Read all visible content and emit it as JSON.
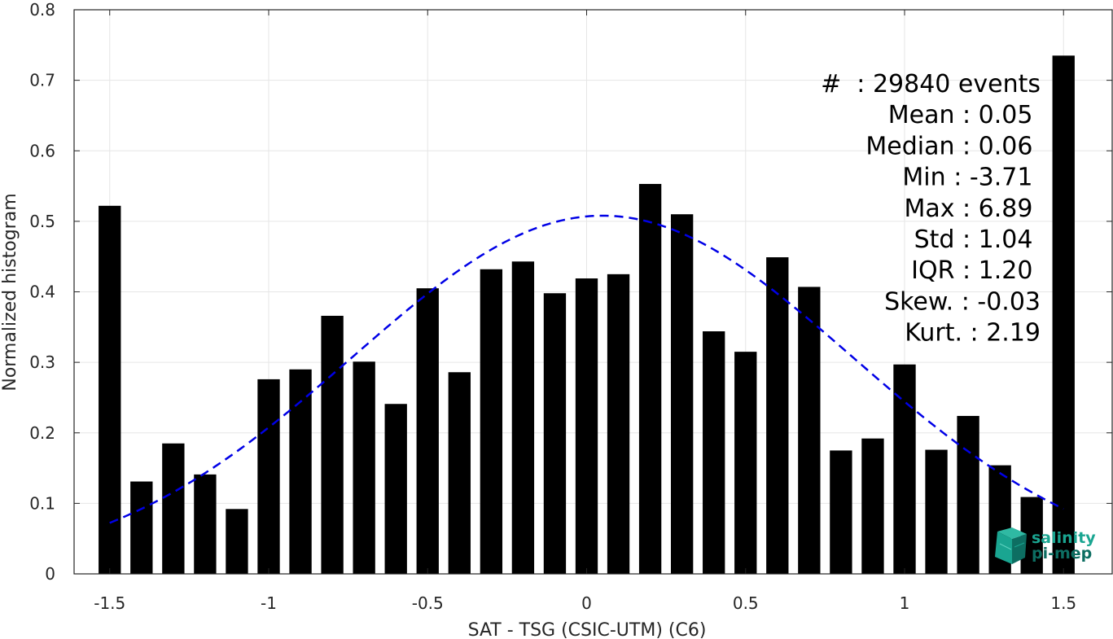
{
  "chart_data": {
    "type": "bar",
    "xlabel": "SAT - TSG (CSIC-UTM) (C6)",
    "ylabel": "Normalized histogram",
    "xlim": [
      -1.6,
      1.6
    ],
    "ylim": [
      0,
      0.8
    ],
    "xticks": [
      -1.5,
      -1,
      -0.5,
      0,
      0.5,
      1,
      1.5
    ],
    "xtick_labels": [
      "-1.5",
      "-1",
      "-0.5",
      "0",
      "0.5",
      "1",
      "1.5"
    ],
    "yticks": [
      0,
      0.1,
      0.2,
      0.3,
      0.4,
      0.5,
      0.6,
      0.7,
      0.8
    ],
    "ytick_labels": [
      "0",
      "0.1",
      "0.2",
      "0.3",
      "0.4",
      "0.5",
      "0.6",
      "0.7",
      "0.8"
    ],
    "grid": true,
    "bar_color": "#000000",
    "bar_width": 0.07,
    "bins": [
      {
        "x": -1.5,
        "y": 0.522
      },
      {
        "x": -1.4,
        "y": 0.131
      },
      {
        "x": -1.3,
        "y": 0.185
      },
      {
        "x": -1.2,
        "y": 0.141
      },
      {
        "x": -1.1,
        "y": 0.092
      },
      {
        "x": -1.0,
        "y": 0.276
      },
      {
        "x": -0.9,
        "y": 0.29
      },
      {
        "x": -0.8,
        "y": 0.366
      },
      {
        "x": -0.7,
        "y": 0.301
      },
      {
        "x": -0.6,
        "y": 0.241
      },
      {
        "x": -0.5,
        "y": 0.405
      },
      {
        "x": -0.4,
        "y": 0.286
      },
      {
        "x": -0.3,
        "y": 0.432
      },
      {
        "x": -0.2,
        "y": 0.443
      },
      {
        "x": -0.1,
        "y": 0.398
      },
      {
        "x": 0.0,
        "y": 0.419
      },
      {
        "x": 0.1,
        "y": 0.425
      },
      {
        "x": 0.2,
        "y": 0.553
      },
      {
        "x": 0.3,
        "y": 0.51
      },
      {
        "x": 0.4,
        "y": 0.344
      },
      {
        "x": 0.5,
        "y": 0.315
      },
      {
        "x": 0.6,
        "y": 0.449
      },
      {
        "x": 0.7,
        "y": 0.407
      },
      {
        "x": 0.8,
        "y": 0.175
      },
      {
        "x": 0.9,
        "y": 0.192
      },
      {
        "x": 1.0,
        "y": 0.297
      },
      {
        "x": 1.1,
        "y": 0.176
      },
      {
        "x": 1.2,
        "y": 0.224
      },
      {
        "x": 1.3,
        "y": 0.154
      },
      {
        "x": 1.4,
        "y": 0.109
      },
      {
        "x": 1.5,
        "y": 0.735
      }
    ],
    "fit_curve": {
      "style": "dashed",
      "color": "#0000e6",
      "mean": 0.05,
      "std": 0.785,
      "peak": 0.508,
      "x_range": [
        -1.5,
        1.5
      ]
    },
    "stats": [
      "#  : 29840 events",
      "Mean : 0.05 ",
      "Median : 0.06 ",
      "Min : -3.71 ",
      "Max : 6.89 ",
      "Std : 1.04 ",
      "IQR : 1.20 ",
      "Skew. : -0.03",
      "Kurt. : 2.19"
    ],
    "logo": {
      "line1": "salinity",
      "line2": "pi-mep",
      "color_main": "#1aa591",
      "color_dark": "#0d6e62"
    }
  }
}
